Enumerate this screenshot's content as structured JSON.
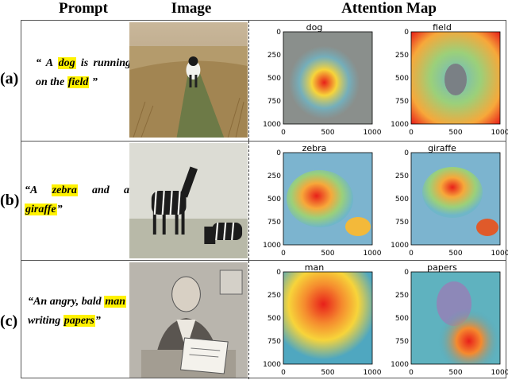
{
  "headers": {
    "prompt": "Prompt",
    "image": "Image",
    "attention": "Attention Map"
  },
  "rows": [
    {
      "label": "(a)",
      "prompt_pre": "“ A ",
      "word1": "dog",
      "prompt_mid": " is running on the ",
      "word2": "field",
      "prompt_post": " ”",
      "maps": [
        {
          "title": "dog"
        },
        {
          "title": "field"
        }
      ]
    },
    {
      "label": "(b)",
      "prompt_pre": "“A ",
      "word1": "zebra",
      "prompt_mid": " and a ",
      "word2": "giraffe",
      "prompt_post": "”",
      "maps": [
        {
          "title": "zebra"
        },
        {
          "title": "giraffe"
        }
      ]
    },
    {
      "label": "(c)",
      "prompt_pre": "“An angry, bald ",
      "word1": "man",
      "prompt_mid": " writing ",
      "word2": "papers",
      "prompt_post": "”",
      "maps": [
        {
          "title": "man"
        },
        {
          "title": "papers"
        }
      ]
    }
  ],
  "axes": {
    "y_ticks": [
      "0",
      "250",
      "500",
      "750",
      "1000"
    ],
    "x_ticks": [
      "0",
      "500",
      "1000"
    ]
  },
  "colors": {
    "highlight": "#fff200",
    "heat_hot": "#e8201a",
    "heat_mid": "#f7d43a",
    "heat_cool": "#6fb6c9",
    "border": "#555555"
  }
}
